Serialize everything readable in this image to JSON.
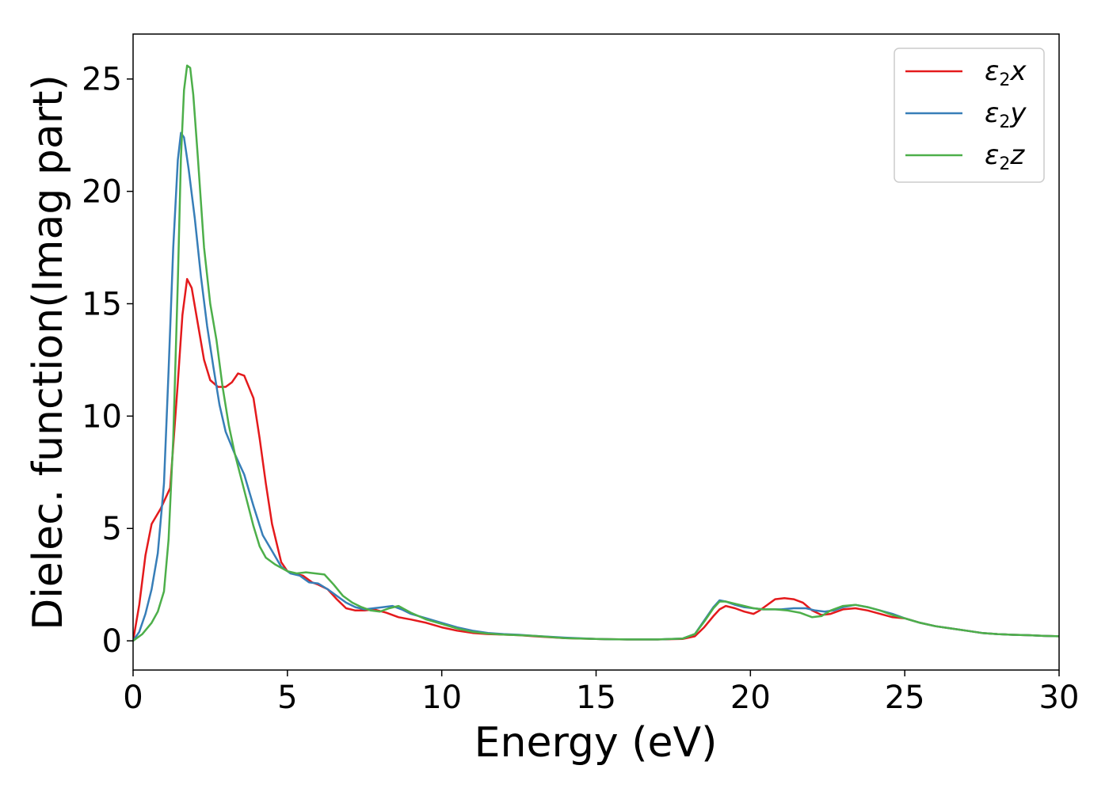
{
  "chart_data": {
    "type": "line",
    "title": "",
    "xlabel": "Energy (eV)",
    "ylabel": "Dielec. function(Imag part)",
    "xlim": [
      0,
      30
    ],
    "ylim": [
      -1.3,
      27
    ],
    "xticks": [
      0,
      5,
      10,
      15,
      20,
      25,
      30
    ],
    "yticks": [
      0,
      5,
      10,
      15,
      20,
      25
    ],
    "grid": false,
    "legend_position": "top-right",
    "series": [
      {
        "name": "ε₂x",
        "label_main": "ε",
        "label_sub": "2",
        "label_axis": "x",
        "color": "#e41a1c",
        "x": [
          0,
          0.2,
          0.4,
          0.6,
          0.9,
          1.2,
          1.45,
          1.6,
          1.75,
          1.9,
          2.1,
          2.3,
          2.5,
          2.75,
          3.0,
          3.2,
          3.4,
          3.6,
          3.9,
          4.1,
          4.3,
          4.5,
          4.8,
          5.0,
          5.2,
          5.5,
          5.8,
          6.0,
          6.3,
          6.6,
          6.9,
          7.2,
          7.5,
          7.8,
          8.2,
          8.6,
          9.0,
          9.5,
          10.0,
          10.5,
          11.0,
          11.5,
          12.0,
          12.5,
          13.0,
          14.0,
          15.0,
          16.0,
          17.0,
          17.8,
          18.2,
          18.5,
          18.8,
          19.0,
          19.2,
          19.5,
          19.8,
          20.1,
          20.3,
          20.6,
          20.8,
          21.1,
          21.4,
          21.7,
          22.0,
          22.3,
          22.6,
          23.0,
          23.4,
          23.8,
          24.2,
          24.6,
          25.0,
          25.5,
          26.0,
          26.5,
          27.0,
          27.5,
          28.0,
          28.5,
          29.0,
          29.5,
          30.0
        ],
        "values": [
          0,
          1.6,
          3.8,
          5.2,
          5.9,
          6.8,
          11.5,
          14.5,
          16.1,
          15.7,
          14.1,
          12.5,
          11.6,
          11.3,
          11.3,
          11.5,
          11.9,
          11.8,
          10.8,
          9.0,
          7.0,
          5.2,
          3.5,
          3.1,
          3.0,
          2.9,
          2.6,
          2.5,
          2.3,
          1.85,
          1.45,
          1.35,
          1.35,
          1.4,
          1.25,
          1.05,
          0.95,
          0.8,
          0.6,
          0.45,
          0.35,
          0.3,
          0.28,
          0.25,
          0.2,
          0.12,
          0.08,
          0.06,
          0.06,
          0.08,
          0.2,
          0.6,
          1.1,
          1.4,
          1.55,
          1.45,
          1.3,
          1.2,
          1.35,
          1.65,
          1.85,
          1.9,
          1.85,
          1.7,
          1.35,
          1.15,
          1.2,
          1.4,
          1.45,
          1.35,
          1.2,
          1.05,
          1.0,
          0.8,
          0.65,
          0.55,
          0.45,
          0.35,
          0.3,
          0.27,
          0.25,
          0.22,
          0.2
        ]
      },
      {
        "name": "ε₂y",
        "label_main": "ε",
        "label_sub": "2",
        "label_axis": "y",
        "color": "#377eb8",
        "x": [
          0,
          0.2,
          0.4,
          0.6,
          0.8,
          1.0,
          1.15,
          1.3,
          1.45,
          1.55,
          1.65,
          1.8,
          2.0,
          2.2,
          2.4,
          2.6,
          2.8,
          3.0,
          3.3,
          3.6,
          3.9,
          4.2,
          4.5,
          4.8,
          5.1,
          5.4,
          5.7,
          6.0,
          6.3,
          6.6,
          6.9,
          7.2,
          7.5,
          7.8,
          8.1,
          8.4,
          8.7,
          9.0,
          9.5,
          10.0,
          10.5,
          11.0,
          11.5,
          12.0,
          12.5,
          13.0,
          14.0,
          15.0,
          16.0,
          17.0,
          17.8,
          18.2,
          18.5,
          18.8,
          19.0,
          19.2,
          19.5,
          19.8,
          20.1,
          20.4,
          20.7,
          21.0,
          21.4,
          21.8,
          22.1,
          22.4,
          22.7,
          23.0,
          23.4,
          23.8,
          24.2,
          24.6,
          25.0,
          25.5,
          26.0,
          26.5,
          27.0,
          27.5,
          28.0,
          28.5,
          29.0,
          29.5,
          30.0
        ],
        "values": [
          0,
          0.4,
          1.2,
          2.3,
          3.9,
          7.0,
          12.0,
          17.5,
          21.4,
          22.6,
          22.4,
          21.0,
          18.8,
          16.2,
          14.0,
          12.2,
          10.5,
          9.3,
          8.3,
          7.4,
          6.0,
          4.7,
          4.0,
          3.3,
          3.0,
          2.9,
          2.6,
          2.55,
          2.3,
          2.0,
          1.7,
          1.5,
          1.4,
          1.45,
          1.5,
          1.55,
          1.4,
          1.2,
          1.0,
          0.8,
          0.6,
          0.45,
          0.35,
          0.3,
          0.27,
          0.22,
          0.14,
          0.08,
          0.06,
          0.06,
          0.1,
          0.3,
          0.9,
          1.5,
          1.8,
          1.75,
          1.6,
          1.5,
          1.45,
          1.4,
          1.4,
          1.4,
          1.45,
          1.45,
          1.35,
          1.3,
          1.35,
          1.5,
          1.6,
          1.5,
          1.35,
          1.2,
          1.0,
          0.8,
          0.65,
          0.55,
          0.45,
          0.35,
          0.3,
          0.27,
          0.25,
          0.22,
          0.2
        ]
      },
      {
        "name": "ε₂z",
        "label_main": "ε",
        "label_sub": "2",
        "label_axis": "z",
        "color": "#4daf4a",
        "x": [
          0,
          0.3,
          0.6,
          0.8,
          1.0,
          1.15,
          1.3,
          1.45,
          1.55,
          1.65,
          1.75,
          1.85,
          1.95,
          2.1,
          2.3,
          2.5,
          2.7,
          2.9,
          3.1,
          3.3,
          3.6,
          3.9,
          4.1,
          4.3,
          4.6,
          5.0,
          5.3,
          5.6,
          5.9,
          6.2,
          6.5,
          6.8,
          7.1,
          7.4,
          7.7,
          8.0,
          8.3,
          8.6,
          9.0,
          9.5,
          10.0,
          10.5,
          11.0,
          11.5,
          12.0,
          12.5,
          13.0,
          14.0,
          15.0,
          16.0,
          17.0,
          17.8,
          18.2,
          18.5,
          18.8,
          19.0,
          19.2,
          19.5,
          19.8,
          20.1,
          20.4,
          20.8,
          21.2,
          21.6,
          22.0,
          22.3,
          22.6,
          23.0,
          23.4,
          23.8,
          24.2,
          24.6,
          25.0,
          25.5,
          26.0,
          26.5,
          27.0,
          27.5,
          28.0,
          28.5,
          29.0,
          29.5,
          30.0
        ],
        "values": [
          0,
          0.3,
          0.8,
          1.3,
          2.2,
          4.5,
          9.0,
          16.0,
          21.5,
          24.5,
          25.6,
          25.5,
          24.3,
          21.5,
          17.5,
          15.0,
          13.4,
          11.3,
          9.6,
          8.3,
          6.7,
          5.1,
          4.2,
          3.7,
          3.4,
          3.1,
          3.0,
          3.05,
          3.0,
          2.95,
          2.5,
          2.0,
          1.7,
          1.5,
          1.35,
          1.3,
          1.45,
          1.55,
          1.25,
          0.95,
          0.75,
          0.55,
          0.4,
          0.32,
          0.28,
          0.25,
          0.22,
          0.12,
          0.08,
          0.06,
          0.06,
          0.1,
          0.3,
          0.85,
          1.45,
          1.75,
          1.75,
          1.65,
          1.55,
          1.45,
          1.4,
          1.4,
          1.35,
          1.25,
          1.05,
          1.1,
          1.35,
          1.55,
          1.6,
          1.5,
          1.35,
          1.15,
          1.0,
          0.8,
          0.65,
          0.55,
          0.45,
          0.35,
          0.3,
          0.27,
          0.25,
          0.22,
          0.2
        ]
      }
    ]
  }
}
